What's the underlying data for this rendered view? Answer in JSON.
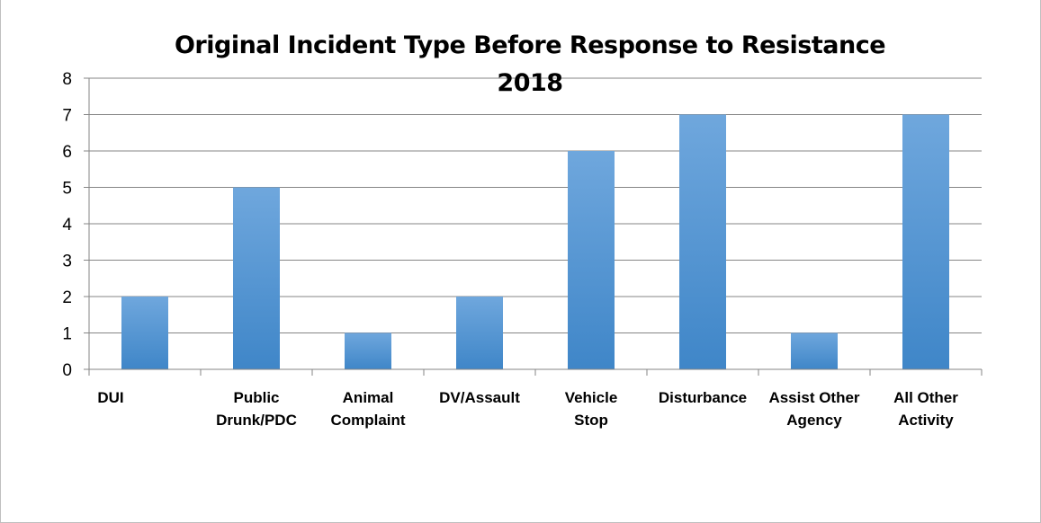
{
  "chart_data": {
    "type": "bar",
    "title": [
      "Original Incident Type Before Response to Resistance",
      "2018"
    ],
    "categories": [
      [
        "DUI"
      ],
      [
        "Public",
        "Drunk/PDC"
      ],
      [
        "Animal",
        "Complaint"
      ],
      [
        "DV/Assault"
      ],
      [
        "Vehicle",
        "Stop"
      ],
      [
        "Disturbance"
      ],
      [
        "Assist Other",
        "Agency"
      ],
      [
        "All Other",
        "Activity"
      ]
    ],
    "values": [
      2,
      5,
      1,
      2,
      6,
      7,
      1,
      7
    ],
    "ylim": [
      0,
      8
    ],
    "yticks": [
      0,
      1,
      2,
      3,
      4,
      5,
      6,
      7,
      8
    ],
    "grid": true,
    "legend": "none",
    "colors": {
      "bar_top": "#6fa7dd",
      "bar_bottom": "#3f86c8",
      "grid": "#868686"
    }
  }
}
